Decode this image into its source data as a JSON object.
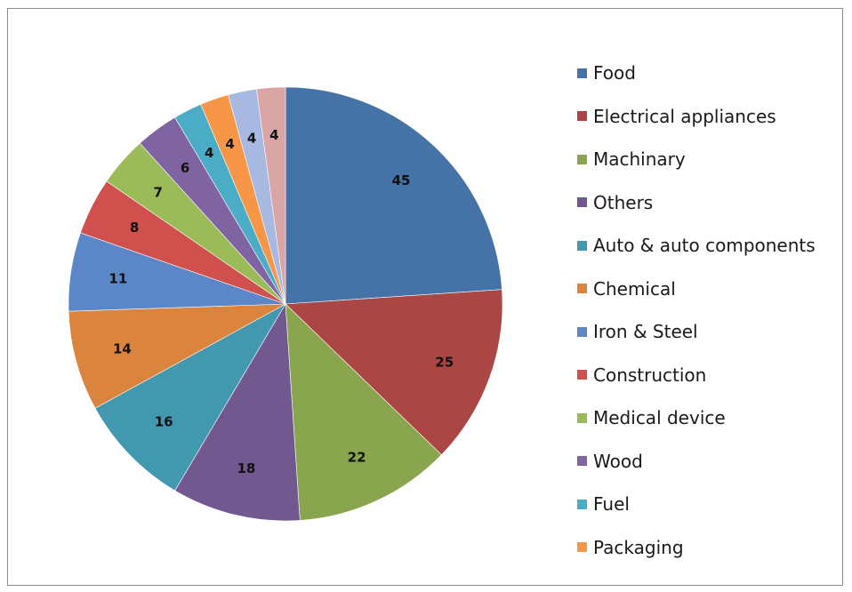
{
  "chart_data": {
    "type": "pie",
    "title": "",
    "legend_position": "right",
    "start_angle_deg": 0,
    "direction": "clockwise",
    "slices": [
      {
        "label": "Food",
        "value": 45,
        "color": "#4573a7"
      },
      {
        "label": "Electrical appliances",
        "value": 25,
        "color": "#aa4643"
      },
      {
        "label": "Machinary",
        "value": 22,
        "color": "#89a54e"
      },
      {
        "label": "Others",
        "value": 18,
        "color": "#71588f"
      },
      {
        "label": "Auto & auto components",
        "value": 16,
        "color": "#4198af"
      },
      {
        "label": "Chemical",
        "value": 14,
        "color": "#db843d"
      },
      {
        "label": "Iron & Steel",
        "value": 11,
        "color": "#5b87c8"
      },
      {
        "label": "Construction",
        "value": 8,
        "color": "#d0504d"
      },
      {
        "label": "Medical device",
        "value": 7,
        "color": "#9bbb59"
      },
      {
        "label": "Wood",
        "value": 6,
        "color": "#8064a2"
      },
      {
        "label": "Fuel",
        "value": 4,
        "color": "#4bacc6"
      },
      {
        "label": "Packaging",
        "value": 4,
        "color": "#f79646"
      },
      {
        "label": "",
        "value": 4,
        "color": "#a7b9e0"
      },
      {
        "label": "",
        "value": 4,
        "color": "#d9a5a5"
      }
    ]
  }
}
